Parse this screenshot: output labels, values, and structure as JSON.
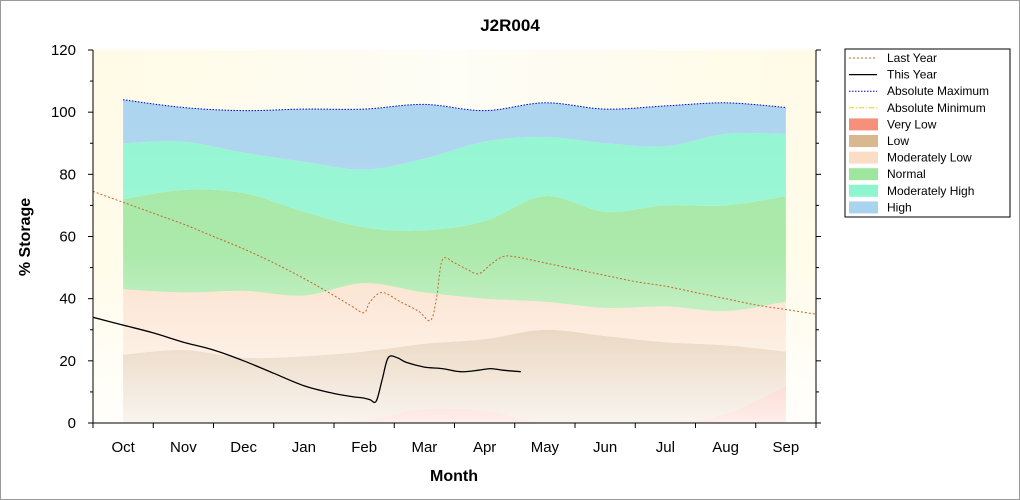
{
  "chart_data": {
    "type": "area",
    "title": "J2R004",
    "xlabel": "Month",
    "ylabel": "% Storage",
    "ylim": [
      0,
      120
    ],
    "yticks": [
      "0",
      "20",
      "40",
      "60",
      "80",
      "100",
      "120"
    ],
    "xlim": [
      -0.5,
      11.5
    ],
    "categories": [
      "Oct",
      "Nov",
      "Dec",
      "Jan",
      "Feb",
      "Mar",
      "Apr",
      "May",
      "Jun",
      "Jul",
      "Aug",
      "Sep"
    ],
    "legend_position": "right",
    "band_x": [
      0,
      1,
      2,
      3,
      4,
      5,
      6,
      7,
      8,
      9,
      10,
      11
    ],
    "bands": [
      {
        "name": "Very Low",
        "color": "#f7907a",
        "lower": [
          0,
          0,
          0,
          0,
          0,
          0,
          0,
          0,
          0,
          0,
          0,
          0
        ],
        "upper": [
          0,
          0,
          0,
          0,
          1,
          4.5,
          4,
          0,
          0,
          0,
          3,
          12
        ]
      },
      {
        "name": "Low",
        "color": "#d9b78f",
        "lower": [
          0,
          0,
          0,
          0,
          1,
          4.5,
          4,
          0,
          0,
          0,
          3,
          12
        ],
        "upper": [
          22,
          23.5,
          21,
          21.5,
          23,
          25.5,
          27,
          30,
          28,
          26,
          25,
          23
        ]
      },
      {
        "name": "Moderately Low",
        "color": "#fbdcc4",
        "lower": [
          22,
          23.5,
          21,
          21.5,
          23,
          25.5,
          27,
          30,
          28,
          26,
          25,
          23
        ],
        "upper": [
          43,
          42,
          42.5,
          41,
          45,
          42,
          40,
          39,
          37,
          37.5,
          36,
          39
        ]
      },
      {
        "name": "Normal",
        "color": "#9ee69e",
        "lower": [
          43,
          42,
          42.5,
          41,
          45,
          42,
          40,
          39,
          37,
          37.5,
          36,
          39
        ],
        "upper": [
          72,
          75,
          74,
          68,
          63,
          62,
          65,
          73,
          68,
          70,
          70,
          73
        ]
      },
      {
        "name": "Moderately High",
        "color": "#8ef5d0",
        "lower": [
          72,
          75,
          74,
          68,
          63,
          62,
          65,
          73,
          68,
          70,
          70,
          73
        ],
        "upper": [
          90,
          90.5,
          87,
          84,
          81.5,
          85,
          90.5,
          92,
          90,
          89,
          93,
          93
        ]
      },
      {
        "name": "High",
        "color": "#a9d3ee",
        "lower": [
          90,
          90.5,
          87,
          84,
          81.5,
          85,
          90.5,
          92,
          90,
          89,
          93,
          93
        ],
        "upper": [
          104,
          101.5,
          100.5,
          101,
          101,
          102.5,
          100.5,
          103,
          101,
          102,
          103,
          101.5
        ]
      }
    ],
    "series": [
      {
        "name": "Absolute Maximum",
        "color": "#0000cc",
        "style": "dotted",
        "x": [
          0,
          1,
          2,
          3,
          4,
          5,
          6,
          7,
          8,
          9,
          10,
          11
        ],
        "y": [
          104,
          101.5,
          100.5,
          101,
          101,
          102.5,
          100.5,
          103,
          101,
          102,
          103,
          101.5
        ]
      },
      {
        "name": "Absolute Minimum",
        "color": "#e6d200",
        "style": "dashdot",
        "x": [],
        "y": []
      },
      {
        "name": "Last Year",
        "color": "#c8642a",
        "style": "dashed",
        "x": [
          -0.5,
          0,
          0.5,
          1,
          1.5,
          2,
          2.5,
          3,
          3.5,
          3.8,
          4.0,
          4.1,
          4.3,
          4.6,
          4.9,
          5.1,
          5.2,
          5.3,
          5.5,
          5.7,
          5.9,
          6.1,
          6.3,
          6.5,
          7,
          7.5,
          8,
          8.5,
          9,
          9.5,
          10,
          10.5,
          11,
          11.5
        ],
        "y": [
          74.5,
          71,
          67.5,
          64,
          60,
          56,
          51.5,
          46.5,
          41,
          37.5,
          35.5,
          39,
          42,
          39,
          36,
          33,
          40,
          52.5,
          51.5,
          49.5,
          48,
          51,
          53.5,
          53.5,
          51.5,
          49.5,
          47.5,
          45.5,
          44,
          42,
          40,
          38,
          36.5,
          35
        ]
      },
      {
        "name": "This Year",
        "color": "#000000",
        "style": "solid",
        "x": [
          -0.5,
          0,
          0.5,
          1,
          1.5,
          2,
          2.5,
          3,
          3.5,
          3.8,
          4.0,
          4.1,
          4.2,
          4.3,
          4.4,
          4.55,
          4.7,
          5,
          5.3,
          5.6,
          5.9,
          6.1,
          6.3,
          6.6
        ],
        "y": [
          34,
          31.5,
          29,
          26,
          23.5,
          20,
          16,
          12,
          9.5,
          8.5,
          8,
          7.5,
          7,
          14,
          21,
          21,
          19.5,
          18,
          17.5,
          16.5,
          17,
          17.5,
          17,
          16.5
        ]
      }
    ],
    "legend": [
      "Last Year",
      "This Year",
      "Absolute Maximum",
      "Absolute Minimum",
      "Very Low",
      "Low",
      "Moderately Low",
      "Normal",
      "Moderately High",
      "High"
    ],
    "grid": false
  }
}
